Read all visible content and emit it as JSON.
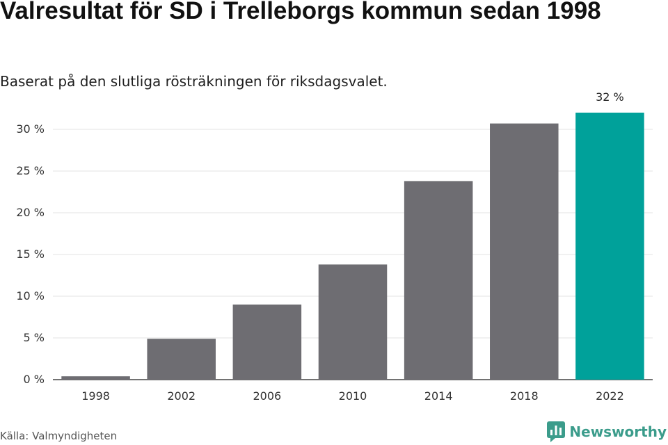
{
  "header": {
    "title": "Valresultat för SD i Trelleborgs kommun sedan 1998",
    "subtitle": "Baserat på den slutliga rösträkningen för riksdagsvalet."
  },
  "footer": {
    "source": "Källa: Valmyndigheten",
    "brand": "Newsworthy"
  },
  "colors": {
    "bar": "#6e6d72",
    "highlight": "#00a19a",
    "grid": "#e3e3e3",
    "axis": "#444444",
    "brand": "#3b9c8b"
  },
  "chart_data": {
    "type": "bar",
    "categories": [
      "1998",
      "2002",
      "2006",
      "2010",
      "2014",
      "2018",
      "2022"
    ],
    "values": [
      0.4,
      4.9,
      9.0,
      13.8,
      23.8,
      30.7,
      32.0
    ],
    "highlight_index": 6,
    "data_labels": [
      {
        "index": 6,
        "text": "32 %"
      }
    ],
    "y_ticks": [
      0,
      5,
      10,
      15,
      20,
      25,
      30
    ],
    "y_tick_labels": [
      "0 %",
      "5 %",
      "10 %",
      "15 %",
      "20 %",
      "25 %",
      "30 %"
    ],
    "ylim": [
      0,
      32
    ],
    "grid": true,
    "legend": "none"
  }
}
